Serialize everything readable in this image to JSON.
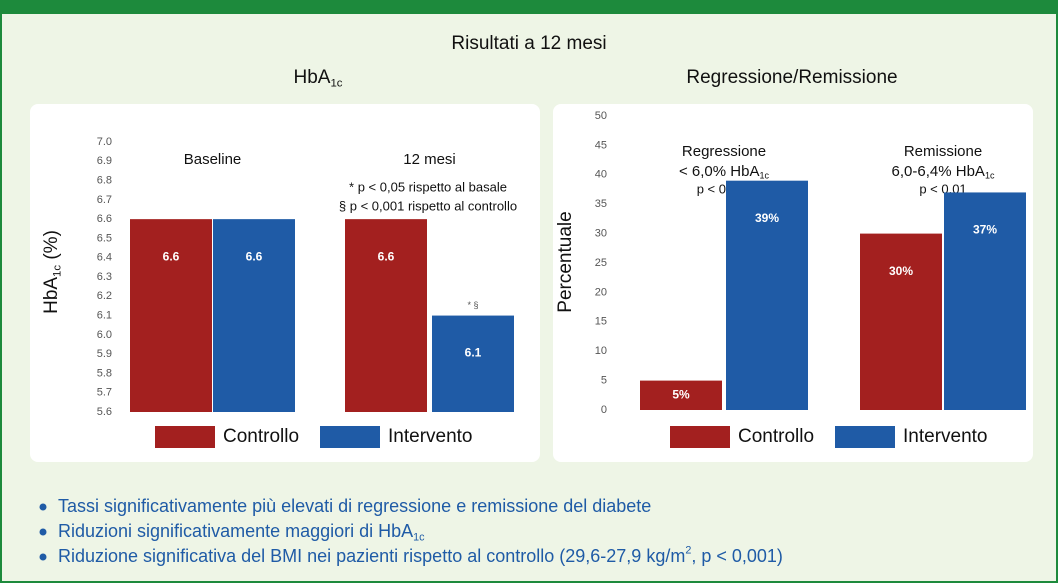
{
  "title": "Risultati a 12 mesi",
  "chart_data": [
    {
      "type": "bar",
      "title": {
        "text": "HbA",
        "sub": "1c"
      },
      "ylabel": {
        "text": "HbA",
        "sub": "1c",
        "rest": " (%)"
      },
      "categories": [
        "Baseline",
        "12 mesi"
      ],
      "series": [
        {
          "name": "Controllo",
          "color": "#a3201f",
          "values": [
            6.6,
            6.6
          ]
        },
        {
          "name": "Intervento",
          "color": "#1f5ba6",
          "values": [
            6.6,
            6.1
          ]
        }
      ],
      "ylim": [
        5.6,
        7.0
      ],
      "yticks": [
        5.6,
        5.7,
        5.8,
        5.9,
        {
          "value": 6,
          "label": "6.0"
        },
        6.1,
        6.2,
        6.3,
        6.4,
        6.5,
        6.6,
        6.7,
        6.8,
        6.9,
        {
          "value": 7,
          "label": "7.0"
        }
      ],
      "annotations": [
        "* p < 0,05 rispetto al basale",
        "§ p < 0,001 rispetto al controllo",
        "* §"
      ]
    },
    {
      "type": "bar",
      "title": {
        "text": "Regressione/Remissione"
      },
      "ylabel": {
        "text": "Percentuale"
      },
      "categories": [
        "Regressione",
        "Remissione"
      ],
      "category_notes": [
        {
          "text": "< 6,0% HbA",
          "sub": "1c",
          "p": "p < 0,001"
        },
        {
          "text": "6,0-6,4% HbA",
          "sub": "1c",
          "p": "p < 0,01"
        }
      ],
      "series": [
        {
          "name": "Controllo",
          "color": "#a3201f",
          "values": [
            5,
            30
          ],
          "value_labels": [
            "5%",
            "30%"
          ]
        },
        {
          "name": "Intervento",
          "color": "#1f5ba6",
          "values": [
            39,
            37
          ],
          "value_labels": [
            "39%",
            "37%"
          ]
        }
      ],
      "ylim": [
        0,
        50
      ],
      "yticks": [
        0,
        5,
        10,
        15,
        20,
        25,
        30,
        35,
        40,
        45,
        50
      ]
    }
  ],
  "bullets": [
    {
      "text": "Tassi significativamente più elevati di regressione e remissione del diabete"
    },
    {
      "text": "Riduzioni significativamente maggiori di HbA",
      "sub": "1c"
    },
    {
      "text": "Riduzione significativa del BMI nei pazienti rispetto al controllo (29,6-27,9 kg/m",
      "sup": "2",
      "rest": ", p < 0,001)"
    }
  ]
}
